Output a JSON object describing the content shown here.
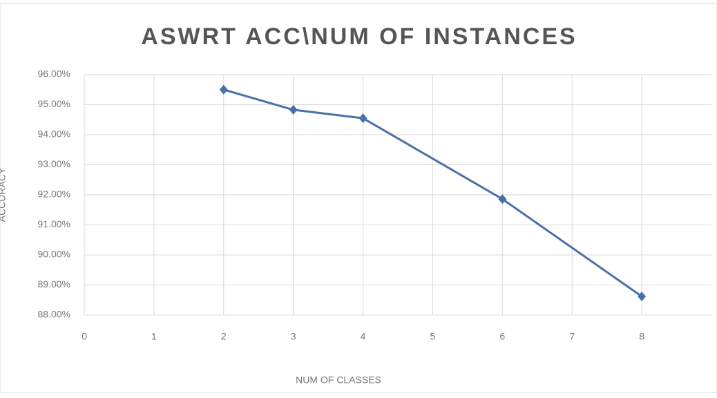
{
  "chart_data": {
    "type": "line",
    "title": "ASWRT ACC\\NUM OF INSTANCES",
    "x_label": "NUM OF CLASSES",
    "y_label": "ACCURACY",
    "series": [
      {
        "name": "ACCURACY",
        "color": "#4a70a8",
        "x": [
          2,
          3,
          4,
          6,
          8
        ],
        "values": [
          95.5,
          94.83,
          94.55,
          91.86,
          88.62
        ]
      }
    ],
    "xlim": [
      0,
      9
    ],
    "xticks": [
      0,
      1,
      2,
      3,
      4,
      5,
      6,
      7,
      8
    ],
    "ylim": [
      88,
      96
    ],
    "yticks": [
      {
        "value": 88,
        "label": "88.00%"
      },
      {
        "value": 89,
        "label": "89.00%"
      },
      {
        "value": 90,
        "label": "90.00%"
      },
      {
        "value": 91,
        "label": "91.00%"
      },
      {
        "value": 92,
        "label": "92.00%"
      },
      {
        "value": 93,
        "label": "93.00%"
      },
      {
        "value": 94,
        "label": "94.00%"
      },
      {
        "value": 95,
        "label": "95.00%"
      },
      {
        "value": 96,
        "label": "96.00%"
      }
    ],
    "grid": true,
    "legend": false
  }
}
